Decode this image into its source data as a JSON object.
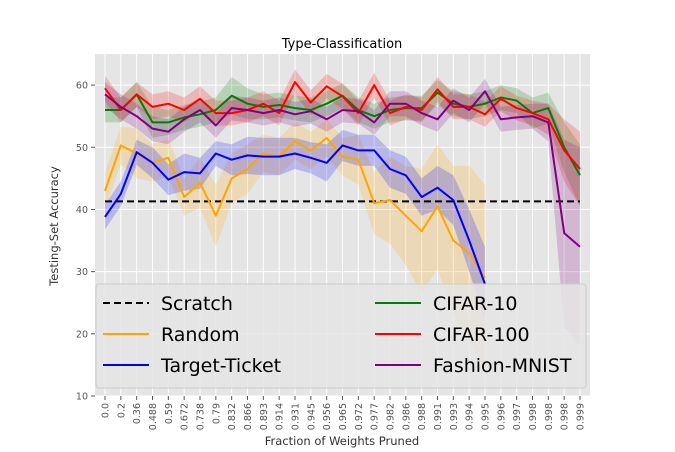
{
  "chart_data": {
    "type": "line",
    "title": "Type-Classification",
    "xlabel": "Fraction of Weights Pruned",
    "ylabel": "Testing-Set Accuracy",
    "ylim": [
      10,
      65
    ],
    "yticks": [
      10,
      20,
      30,
      40,
      50,
      60
    ],
    "grid": true,
    "legend_position": "bottom",
    "x": [
      "0.0",
      "0.2",
      "0.36",
      "0.488",
      "0.59",
      "0.672",
      "0.738",
      "0.79",
      "0.832",
      "0.866",
      "0.893",
      "0.914",
      "0.931",
      "0.945",
      "0.956",
      "0.965",
      "0.972",
      "0.977",
      "0.982",
      "0.986",
      "0.988",
      "0.991",
      "0.993",
      "0.994",
      "0.995",
      "0.996",
      "0.997",
      "0.998",
      "0.998",
      "0.998",
      "0.999"
    ],
    "series": [
      {
        "name": "Scratch",
        "color": "#000000",
        "dash": true,
        "values": [
          41.3,
          41.3,
          41.3,
          41.3,
          41.3,
          41.3,
          41.3,
          41.3,
          41.3,
          41.3,
          41.3,
          41.3,
          41.3,
          41.3,
          41.3,
          41.3,
          41.3,
          41.3,
          41.3,
          41.3,
          41.3,
          41.3,
          41.3,
          41.3,
          41.3,
          41.3,
          41.3,
          41.3,
          41.3,
          41.3,
          41.3
        ]
      },
      {
        "name": "Random",
        "color": "#ffa500",
        "values": [
          43,
          50.3,
          49,
          47.5,
          48.3,
          42,
          44.3,
          39,
          45,
          46.5,
          49,
          48.5,
          51,
          49.5,
          51.5,
          48.5,
          48,
          41,
          41.5,
          39,
          36.5,
          40.5,
          35,
          33,
          29,
          null,
          null,
          null,
          null,
          null,
          null
        ],
        "band": [
          3,
          3,
          4,
          3,
          3,
          3,
          4,
          5,
          4,
          4,
          3,
          3,
          3,
          3,
          3,
          3,
          4,
          5,
          7,
          8,
          10,
          10,
          12,
          14,
          15,
          null,
          null,
          null,
          null,
          null,
          null
        ]
      },
      {
        "name": "Target-Ticket",
        "color": "#0000ff",
        "values": [
          38.8,
          42.5,
          49.2,
          47.5,
          44.8,
          46,
          45.8,
          49,
          48,
          48.7,
          48.5,
          48.5,
          49,
          48.3,
          47.5,
          50.3,
          49.5,
          49.5,
          46.5,
          45.5,
          42,
          43.5,
          41.5,
          35,
          28,
          null,
          null,
          null,
          null,
          null,
          null
        ],
        "band": [
          2,
          2,
          2,
          2.5,
          2.5,
          3,
          2.5,
          2,
          2.5,
          3,
          3,
          3,
          2.5,
          2.5,
          3,
          2.5,
          2.5,
          2.5,
          3,
          3,
          3,
          3.5,
          4,
          5,
          6,
          null,
          null,
          null,
          null,
          null,
          null
        ]
      },
      {
        "name": "CIFAR-10",
        "color": "#008000",
        "values": [
          56,
          56,
          58.5,
          54,
          54,
          54.8,
          55.3,
          56,
          58.3,
          57,
          56.5,
          56.8,
          56.3,
          56,
          57,
          58.3,
          56,
          55,
          56,
          56.3,
          56.3,
          58.8,
          57,
          56.5,
          57,
          58,
          57.5,
          55.5,
          56.3,
          50,
          45.5
        ],
        "band": [
          2,
          2,
          2,
          2.5,
          2,
          2,
          2,
          2,
          3,
          2.5,
          2,
          2,
          2,
          2,
          2,
          2,
          2,
          2,
          2,
          2,
          2,
          2,
          2,
          2,
          2,
          2,
          2,
          2.5,
          2.5,
          4,
          5
        ]
      },
      {
        "name": "CIFAR-100",
        "color": "#ff0000",
        "values": [
          59.5,
          56,
          58.5,
          56.5,
          57,
          56,
          57.8,
          55.5,
          55.5,
          56,
          57,
          55.5,
          60.5,
          57.2,
          59.8,
          58.2,
          55.5,
          60,
          55.5,
          56.5,
          56,
          59.3,
          56.5,
          56.5,
          55.3,
          57.8,
          56.3,
          55.5,
          54.5,
          49.5,
          46.5
        ],
        "band": [
          2,
          2,
          2,
          2,
          2,
          2,
          2,
          2,
          2,
          2,
          2,
          2,
          2,
          2,
          2,
          2,
          2,
          2,
          2,
          2,
          2,
          2,
          2,
          2,
          2,
          2,
          2,
          2,
          2.5,
          5,
          6
        ]
      },
      {
        "name": "Fashion-MNIST",
        "color": "#800080",
        "values": [
          58.5,
          56.5,
          55,
          53,
          52.5,
          54.5,
          56,
          53.5,
          56.3,
          56,
          55.5,
          56,
          55.3,
          55.8,
          54.5,
          56,
          55.8,
          54,
          57,
          57,
          55.5,
          54.5,
          57.5,
          56,
          59,
          54.5,
          54.8,
          55,
          54,
          36.2,
          34
        ],
        "band": [
          2,
          2,
          2,
          2,
          2,
          2,
          2,
          2,
          2,
          2,
          2,
          2,
          2,
          2,
          2,
          2,
          2,
          2,
          2,
          2,
          2,
          2,
          2,
          2,
          2,
          2,
          2,
          2,
          3,
          15,
          16
        ]
      }
    ]
  }
}
